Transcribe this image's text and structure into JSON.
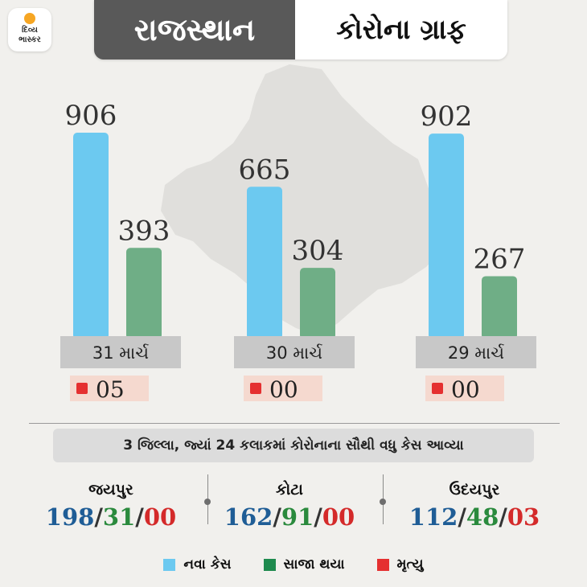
{
  "logo": {
    "text": "દિવ્ય\nભાસ્કર"
  },
  "header": {
    "state": "રાજસ્થાન",
    "title": "કોરોના ગ્રાફ"
  },
  "colors": {
    "new_cases": "#6cc9f0",
    "recovered": "#6fae86",
    "deaths": "#e53030",
    "label_bg": "#c8c8c8",
    "death_box_bg": "#f5d9cf",
    "stat_new": "#1f5d96",
    "stat_recovered": "#2a8a3d",
    "stat_deaths": "#d42a2a"
  },
  "chart_data": {
    "type": "bar",
    "categories": [
      "31 માર્ચ",
      "30 માર્ચ",
      "29 માર્ચ"
    ],
    "series": [
      {
        "name": "નવા કેસ",
        "values": [
          906,
          665,
          902
        ]
      },
      {
        "name": "સાજા થયા",
        "values": [
          393,
          304,
          267
        ]
      }
    ],
    "deaths": [
      5,
      0,
      0
    ],
    "death_labels": [
      "05",
      "00",
      "00"
    ],
    "ylim": [
      0,
      906
    ]
  },
  "districts_heading": "3 જિલ્લા, જ્યાં 24 કલાકમાં કોરોનાના સૌથી વધુ કેસ આવ્યા",
  "districts": [
    {
      "name": "જયપુર",
      "new": "198",
      "recovered": "31",
      "deaths": "00"
    },
    {
      "name": "કોટા",
      "new": "162",
      "recovered": "91",
      "deaths": "00"
    },
    {
      "name": "ઉદયપુર",
      "new": "112",
      "recovered": "48",
      "deaths": "03"
    }
  ],
  "legend": [
    {
      "label": "નવા કેસ",
      "color": "#6cc9f0"
    },
    {
      "label": "સાજા થયા",
      "color": "#1e8a4e"
    },
    {
      "label": "મૃત્યુ",
      "color": "#e53030"
    }
  ]
}
